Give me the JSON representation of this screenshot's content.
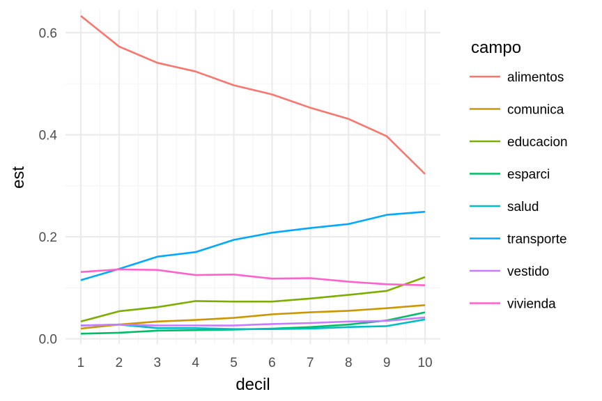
{
  "chart_data": {
    "type": "line",
    "xlabel": "decil",
    "ylabel": "est",
    "x": [
      1,
      2,
      3,
      4,
      5,
      6,
      7,
      8,
      9,
      10
    ],
    "xlim": [
      0.6,
      10.4
    ],
    "ylim": [
      -0.01,
      0.645
    ],
    "x_ticks": [
      1,
      2,
      3,
      4,
      5,
      6,
      7,
      8,
      9,
      10
    ],
    "y_ticks": [
      0.0,
      0.2,
      0.4,
      0.6
    ],
    "y_tick_labels": [
      "0.0",
      "0.2",
      "0.4",
      "0.6"
    ],
    "grid": true,
    "legend_title": "campo",
    "legend_position": "right",
    "series": [
      {
        "name": "alimentos",
        "color": "#F8766D",
        "values": [
          0.633,
          0.573,
          0.541,
          0.524,
          0.497,
          0.479,
          0.453,
          0.431,
          0.397,
          0.323
        ]
      },
      {
        "name": "comunica",
        "color": "#CD9600",
        "values": [
          0.02,
          0.028,
          0.034,
          0.037,
          0.041,
          0.048,
          0.052,
          0.055,
          0.06,
          0.066
        ]
      },
      {
        "name": "educacion",
        "color": "#7CAE00",
        "values": [
          0.034,
          0.054,
          0.062,
          0.074,
          0.073,
          0.073,
          0.079,
          0.086,
          0.094,
          0.121
        ]
      },
      {
        "name": "esparci",
        "color": "#00BE67",
        "values": [
          0.01,
          0.012,
          0.016,
          0.017,
          0.018,
          0.02,
          0.023,
          0.028,
          0.036,
          0.052
        ]
      },
      {
        "name": "salud",
        "color": "#00BFC4",
        "values": [
          0.026,
          0.028,
          0.021,
          0.021,
          0.019,
          0.019,
          0.02,
          0.023,
          0.025,
          0.038
        ]
      },
      {
        "name": "transporte",
        "color": "#00A9FF",
        "values": [
          0.115,
          0.137,
          0.161,
          0.17,
          0.194,
          0.208,
          0.217,
          0.225,
          0.243,
          0.249
        ]
      },
      {
        "name": "vestido",
        "color": "#C77CFF",
        "values": [
          0.026,
          0.028,
          0.026,
          0.026,
          0.026,
          0.029,
          0.031,
          0.034,
          0.035,
          0.042
        ]
      },
      {
        "name": "vivienda",
        "color": "#FF61CC",
        "values": [
          0.131,
          0.136,
          0.135,
          0.125,
          0.126,
          0.118,
          0.119,
          0.112,
          0.107,
          0.105
        ]
      }
    ]
  }
}
